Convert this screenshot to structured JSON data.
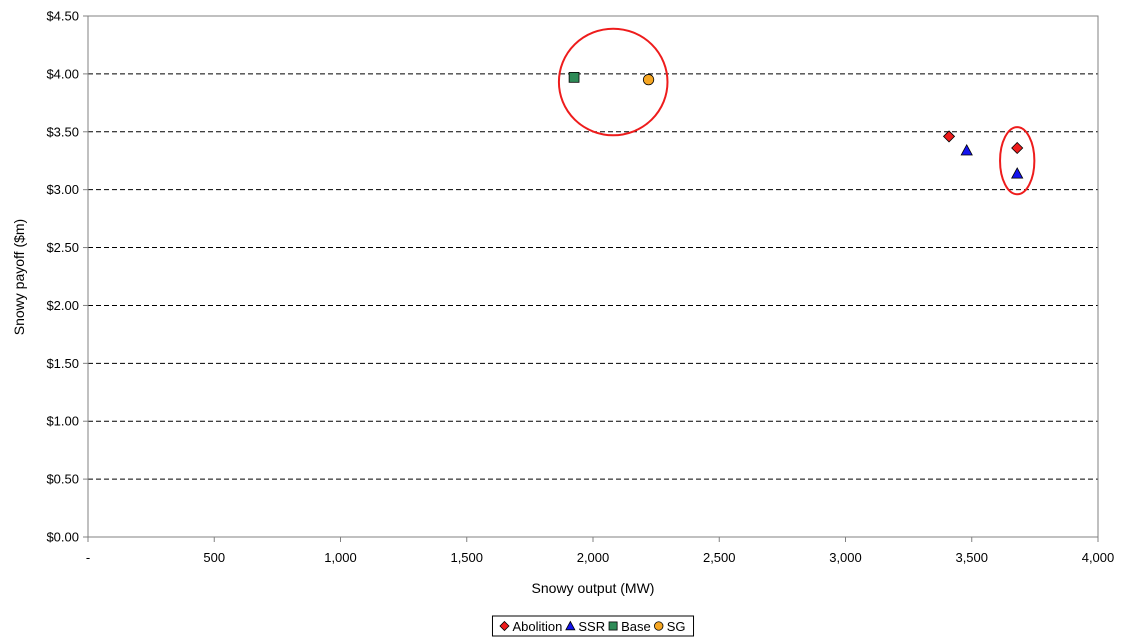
{
  "chart_data": {
    "type": "scatter",
    "xlabel": "Snowy output (MW)",
    "ylabel": "Snowy payoff ($m)",
    "xlim": [
      0,
      4000
    ],
    "ylim": [
      0,
      4.5
    ],
    "x_ticks": [
      {
        "value": 0,
        "label": "-"
      },
      {
        "value": 500,
        "label": "500"
      },
      {
        "value": 1000,
        "label": "1,000"
      },
      {
        "value": 1500,
        "label": "1,500"
      },
      {
        "value": 2000,
        "label": "2,000"
      },
      {
        "value": 2500,
        "label": "2,500"
      },
      {
        "value": 3000,
        "label": "3,000"
      },
      {
        "value": 3500,
        "label": "3,500"
      },
      {
        "value": 4000,
        "label": "4,000"
      }
    ],
    "y_ticks": [
      {
        "value": 0,
        "label": "$0.00"
      },
      {
        "value": 0.5,
        "label": "$0.50"
      },
      {
        "value": 1,
        "label": "$1.00"
      },
      {
        "value": 1.5,
        "label": "$1.50"
      },
      {
        "value": 2,
        "label": "$2.00"
      },
      {
        "value": 2.5,
        "label": "$2.50"
      },
      {
        "value": 3,
        "label": "$3.00"
      },
      {
        "value": 3.5,
        "label": "$3.50"
      },
      {
        "value": 4,
        "label": "$4.00"
      },
      {
        "value": 4.5,
        "label": "$4.50"
      }
    ],
    "grid": "horizontal dashed",
    "legend_position": "bottom",
    "series": [
      {
        "name": "Abolition",
        "marker": "diamond",
        "color": "#ee1c1c",
        "points": [
          {
            "x": 3410,
            "y": 3.46
          },
          {
            "x": 3680,
            "y": 3.36
          }
        ]
      },
      {
        "name": "SSR",
        "marker": "triangle",
        "color": "#1414ee",
        "points": [
          {
            "x": 3480,
            "y": 3.34
          },
          {
            "x": 3680,
            "y": 3.14
          }
        ]
      },
      {
        "name": "Base",
        "marker": "square",
        "color": "#2e8b57",
        "points": [
          {
            "x": 1925,
            "y": 3.97
          }
        ]
      },
      {
        "name": "SG",
        "marker": "circle",
        "color": "#f5a623",
        "points": [
          {
            "x": 2220,
            "y": 3.95
          }
        ]
      }
    ],
    "annotations": [
      {
        "shape": "ellipse",
        "color": "#ee1c1c",
        "center": {
          "x": 2080,
          "y": 3.93
        },
        "rx_data": 215,
        "ry_data": 0.46
      },
      {
        "shape": "ellipse",
        "color": "#ee1c1c",
        "center": {
          "x": 3680,
          "y": 3.25
        },
        "rx_data": 68,
        "ry_data": 0.29
      }
    ]
  }
}
